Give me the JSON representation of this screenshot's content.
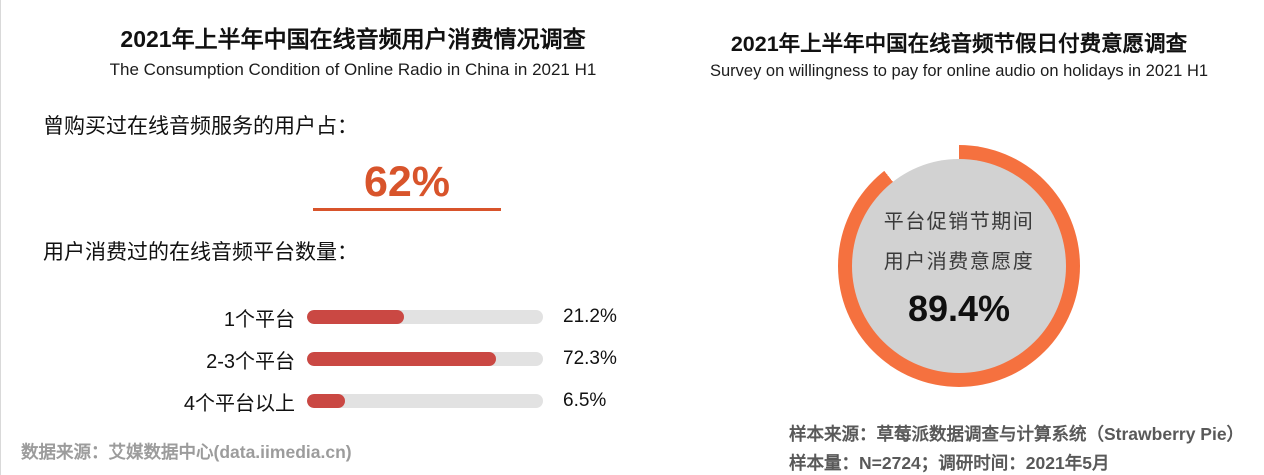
{
  "left_panel": {
    "title": "2021年上半年中国在线音频用户消费情况调查",
    "subtitle": "The Consumption Condition of Online Radio in China in 2021 H1",
    "purchase_label": "曾购买过在线音频服务的用户占：",
    "purchase_value": "62%",
    "platforms_label": "用户消费过的在线音频平台数量：",
    "source": "数据来源：艾媒数据中心(data.iimedia.cn)"
  },
  "right_panel": {
    "title": "2021年上半年中国在线音频节假日付费意愿调查",
    "subtitle": "Survey on willingness to pay for online audio on holidays in 2021 H1",
    "donut_label_line1": "平台促销节期间",
    "donut_label_line2": "用户消费意愿度",
    "donut_value": "89.4%",
    "source_line1": "样本来源：草莓派数据调查与计算系统（Strawberry Pie）",
    "source_line2": "样本量：N=2724；调研时间：2021年5月"
  },
  "colors": {
    "stat_orange": "#d8542b",
    "bar_red": "#ca4843",
    "bar_track_gray": "#e2e2e2",
    "donut_orange": "#f5713f",
    "donut_gap": "#ffffff",
    "donut_center_gray": "#d2d2d2",
    "donut_text": "#3a3a3a",
    "left_footer_gray": "#9c9c9c",
    "right_footer_gray": "#595959"
  },
  "chart_data": [
    {
      "type": "bar",
      "orientation": "horizontal",
      "title": "2021年上半年中国在线音频用户消费情况调查",
      "subtitle": "The Consumption Condition of Online Radio in China in 2021 H1",
      "highlight_stat": {
        "label": "曾购买过在线音频服务的用户占",
        "value": 62,
        "display": "62%"
      },
      "section_label": "用户消费过的在线音频平台数量",
      "categories": [
        "1个平台",
        "2-3个平台",
        "4个平台以上"
      ],
      "values": [
        21.2,
        72.3,
        6.5
      ],
      "value_labels": [
        "21.2%",
        "72.3%",
        "6.5%"
      ],
      "bar_fill_fractions": [
        0.41,
        0.8,
        0.16
      ],
      "xlim": [
        0,
        100
      ],
      "grid": false,
      "legend": "none",
      "source": "数据来源：艾媒数据中心(data.iimedia.cn)"
    },
    {
      "type": "pie",
      "style": "donut",
      "title": "2021年上半年中国在线音频节假日付费意愿调查",
      "subtitle": "Survey on willingness to pay for online audio on holidays in 2021 H1",
      "label": "平台促销节期间用户消费意愿度",
      "value": 89.4,
      "display": "89.4%",
      "remainder": 10.6,
      "start_angle_deg": 0,
      "direction": "clockwise",
      "source_lines": [
        "样本来源：草莓派数据调查与计算系统（Strawberry Pie）",
        "样本量：N=2724；调研时间：2021年5月"
      ]
    }
  ]
}
